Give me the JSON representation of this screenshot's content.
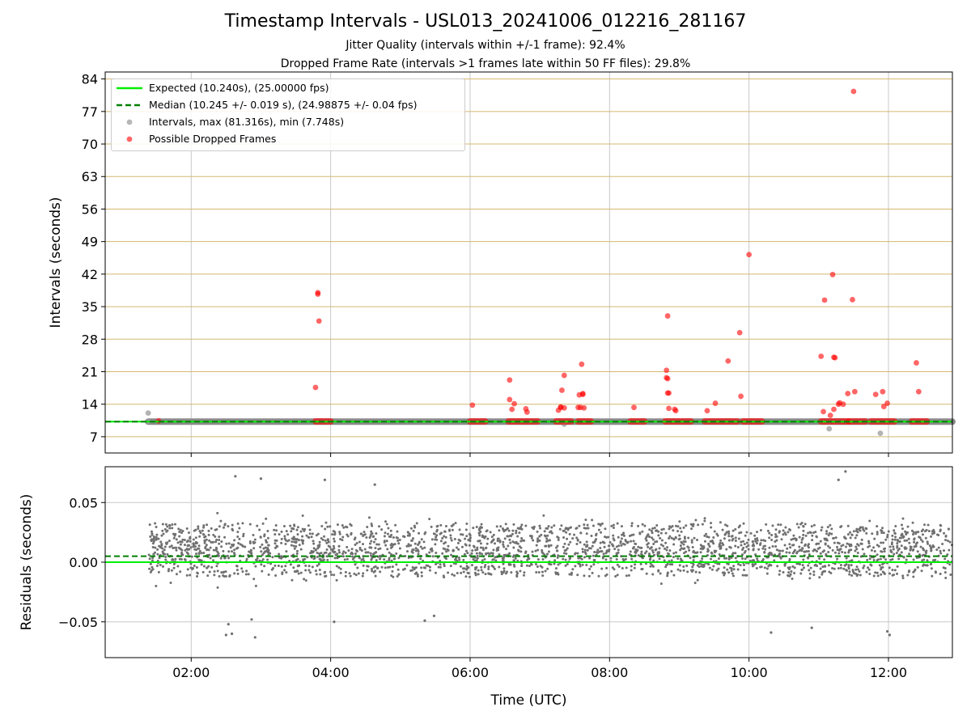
{
  "title": "Timestamp Intervals - USL013_20241006_012216_281167",
  "subtitle_jitter": "Jitter Quality (intervals within +/-1 frame): 92.4%",
  "subtitle_dropped": "Dropped Frame Rate (intervals >1 frames late within 50 FF files): 29.8%",
  "colors": {
    "expected": "#00ee00",
    "median": "#008000",
    "intervals": "#999999",
    "dropped": "#ff0000",
    "residuals": "#707070",
    "hgrid_top": "#d4b870",
    "grid": "#c8c8c8"
  },
  "chart_data": [
    {
      "type": "scatter",
      "xlabel": "",
      "ylabel": "Intervals (seconds)",
      "xlim": [
        "00:46",
        "12:55"
      ],
      "ylim": [
        3.5,
        85.5
      ],
      "x_ticks": [
        "02:00",
        "04:00",
        "06:00",
        "08:00",
        "10:00",
        "12:00"
      ],
      "y_ticks": [
        7,
        14,
        21,
        28,
        35,
        42,
        49,
        56,
        63,
        70,
        77,
        84
      ],
      "grid": true,
      "legend_position": "top-left",
      "legend": [
        "Expected (10.240s), (25.00000 fps)",
        "Median (10.245 +/- 0.019 s), (24.98875 +/- 0.04 fps)",
        "Intervals, max (81.316s), min (7.748s)",
        "Possible Dropped Frames"
      ],
      "expected_interval": 10.24,
      "median_interval": 10.245,
      "series": [
        {
          "name": "Intervals, max (81.316s), min (7.748s)",
          "style": "gray dots",
          "points": [
            [
              "01:23",
              12.1
            ],
            [
              "01:23",
              10.24
            ],
            [
              "07:21",
              9.7
            ],
            [
              "11:09",
              8.7
            ],
            [
              "11:53",
              7.748
            ]
          ],
          "baseline": {
            "value": 10.24,
            "from": "01:23",
            "to": "12:55"
          }
        },
        {
          "name": "Possible Dropped Frames",
          "style": "red dots",
          "points": [
            [
              "01:32",
              10.4
            ],
            [
              "03:47",
              17.6
            ],
            [
              "03:49",
              38.0
            ],
            [
              "03:49",
              37.7
            ],
            [
              "03:50",
              31.9
            ],
            [
              "06:02",
              13.8
            ],
            [
              "06:34",
              19.2
            ],
            [
              "06:34",
              15.0
            ],
            [
              "06:36",
              12.9
            ],
            [
              "06:38",
              14.1
            ],
            [
              "06:48",
              13.0
            ],
            [
              "06:49",
              12.3
            ],
            [
              "07:16",
              12.7
            ],
            [
              "07:18",
              13.4
            ],
            [
              "07:18",
              13.3
            ],
            [
              "07:19",
              17.0
            ],
            [
              "07:21",
              20.2
            ],
            [
              "07:21",
              13.2
            ],
            [
              "07:33",
              13.3
            ],
            [
              "07:34",
              16.0
            ],
            [
              "07:35",
              13.3
            ],
            [
              "07:36",
              22.6
            ],
            [
              "07:37",
              16.3
            ],
            [
              "07:37",
              16.1
            ],
            [
              "07:38",
              13.2
            ],
            [
              "08:21",
              13.3
            ],
            [
              "08:49",
              21.3
            ],
            [
              "08:49",
              19.7
            ],
            [
              "08:50",
              19.5
            ],
            [
              "08:50",
              16.4
            ],
            [
              "08:51",
              16.4
            ],
            [
              "08:50",
              33.0
            ],
            [
              "08:51",
              13.1
            ],
            [
              "08:56",
              12.9
            ],
            [
              "08:57",
              12.6
            ],
            [
              "09:24",
              12.6
            ],
            [
              "09:31",
              14.2
            ],
            [
              "09:42",
              23.3
            ],
            [
              "09:52",
              29.4
            ],
            [
              "09:53",
              15.7
            ],
            [
              "10:00",
              46.2
            ],
            [
              "11:02",
              24.3
            ],
            [
              "11:05",
              36.4
            ],
            [
              "11:04",
              12.4
            ],
            [
              "11:10",
              11.6
            ],
            [
              "11:12",
              41.9
            ],
            [
              "11:13",
              24.1
            ],
            [
              "11:14",
              24.0
            ],
            [
              "11:13",
              12.9
            ],
            [
              "11:17",
              14.0
            ],
            [
              "11:18",
              14.3
            ],
            [
              "11:21",
              14.0
            ],
            [
              "11:25",
              16.3
            ],
            [
              "11:29",
              36.5
            ],
            [
              "11:31",
              16.7
            ],
            [
              "11:30",
              81.316
            ],
            [
              "11:49",
              16.1
            ],
            [
              "11:55",
              16.7
            ],
            [
              "11:56",
              13.5
            ],
            [
              "11:59",
              14.2
            ],
            [
              "12:24",
              22.9
            ],
            [
              "12:26",
              16.7
            ]
          ],
          "baseline_runs": [
            [
              "03:47",
              "04:00"
            ],
            [
              "06:00",
              "06:13"
            ],
            [
              "06:33",
              "06:58"
            ],
            [
              "07:14",
              "07:27"
            ],
            [
              "07:33",
              "07:44"
            ],
            [
              "08:18",
              "08:30"
            ],
            [
              "08:48",
              "09:10"
            ],
            [
              "09:22",
              "09:50"
            ],
            [
              "09:55",
              "10:11"
            ],
            [
              "11:02",
              "11:25"
            ],
            [
              "11:26",
              "11:40"
            ],
            [
              "11:45",
              "12:05"
            ],
            [
              "12:20",
              "12:33"
            ]
          ],
          "baseline_value": 10.28
        }
      ]
    },
    {
      "type": "scatter",
      "xlabel": "Time (UTC)",
      "ylabel": "Residuals (seconds)",
      "xlim": [
        "00:46",
        "12:55"
      ],
      "ylim": [
        -0.08,
        0.08
      ],
      "x_ticks": [
        "02:00",
        "04:00",
        "06:00",
        "08:00",
        "10:00",
        "12:00"
      ],
      "y_ticks": [
        "0.05",
        "0.00",
        "−0.05"
      ],
      "y_tick_values": [
        0.05,
        0.0,
        -0.05
      ],
      "grid": true,
      "expected_residual": 0.0,
      "median_residual": 0.005,
      "series": [
        {
          "name": "",
          "style": "gray dots",
          "x_range": [
            "01:23",
            "12:55"
          ],
          "band": {
            "center": 0.01,
            "spread": 0.022,
            "outlier_spread": 0.034
          },
          "count": 2600,
          "points": [
            [
              "02:32",
              -0.052
            ],
            [
              "02:35",
              -0.06
            ],
            [
              "02:30",
              -0.061
            ],
            [
              "02:55",
              -0.063
            ],
            [
              "02:52",
              -0.048
            ],
            [
              "02:38",
              0.072
            ],
            [
              "03:00",
              0.07
            ],
            [
              "03:55",
              0.069
            ],
            [
              "04:03",
              -0.05
            ],
            [
              "05:21",
              -0.049
            ],
            [
              "05:29",
              -0.045
            ],
            [
              "10:19",
              -0.059
            ],
            [
              "10:54",
              -0.055
            ],
            [
              "11:59",
              -0.058
            ],
            [
              "12:01",
              -0.061
            ],
            [
              "11:23",
              0.076
            ],
            [
              "11:17",
              0.069
            ],
            [
              "04:38",
              0.065
            ]
          ]
        }
      ]
    }
  ]
}
